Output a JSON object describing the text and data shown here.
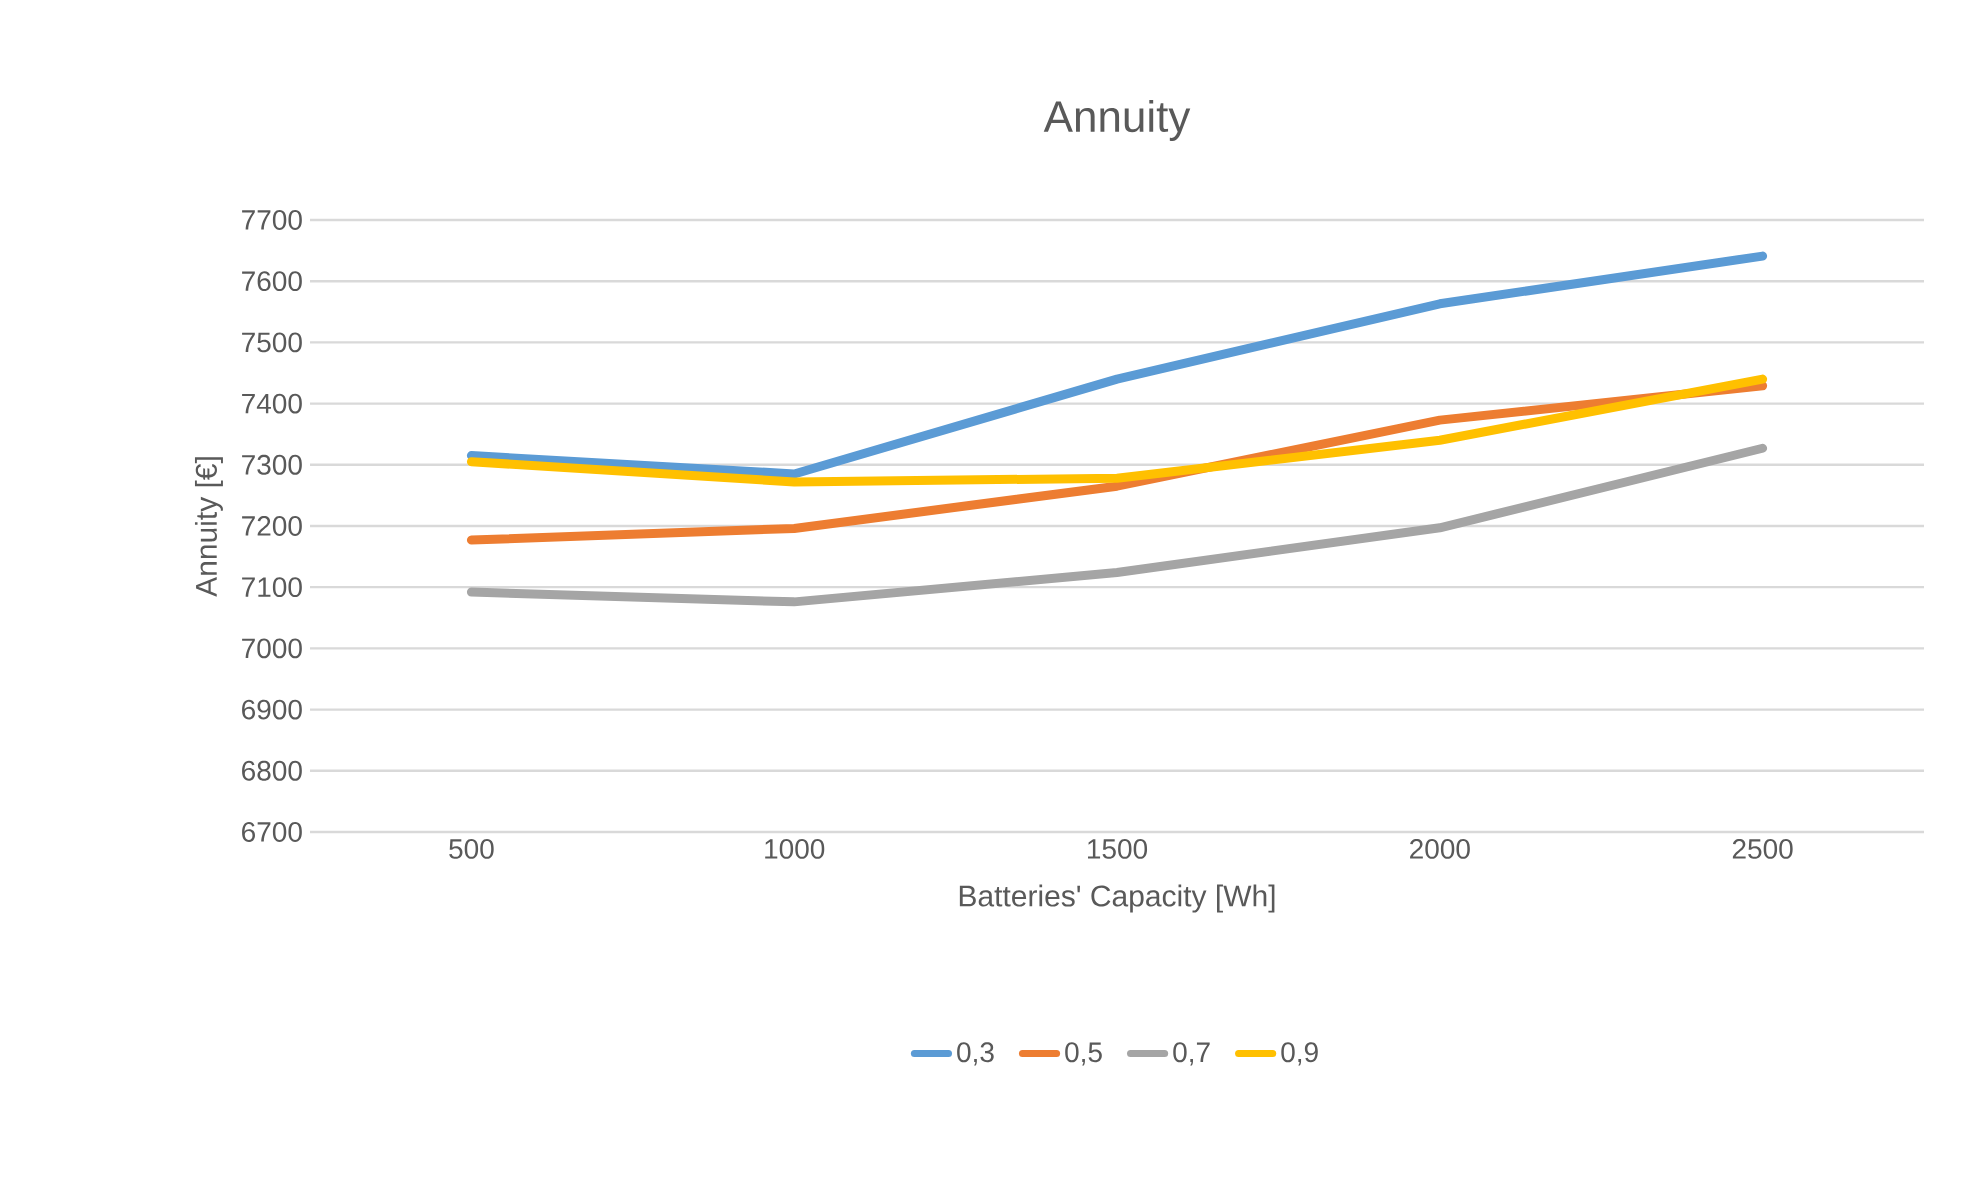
{
  "chart_data": {
    "type": "line",
    "title": "Annuity",
    "xlabel": "Batteries' Capacity [Wh]",
    "ylabel": "Annuity [€]",
    "categories": [
      "500",
      "1000",
      "1500",
      "2000",
      "2500"
    ],
    "series": [
      {
        "name": "0,3",
        "color": "#5b9bd5",
        "values": [
          7315,
          7285,
          7440,
          7563,
          7641
        ]
      },
      {
        "name": "0,5",
        "color": "#ed7d31",
        "values": [
          7177,
          7196,
          7265,
          7373,
          7429
        ]
      },
      {
        "name": "0,7",
        "color": "#a5a5a5",
        "values": [
          7092,
          7076,
          7124,
          7197,
          7327
        ]
      },
      {
        "name": "0,9",
        "color": "#ffc000",
        "values": [
          7305,
          7272,
          7278,
          7340,
          7440
        ]
      }
    ],
    "ylim": [
      6700,
      7700
    ],
    "yticks": [
      6700,
      6800,
      6900,
      7000,
      7100,
      7200,
      7300,
      7400,
      7500,
      7600,
      7700
    ],
    "grid": "y",
    "legend": "bottom",
    "marker": "none",
    "line_style": "solid"
  }
}
